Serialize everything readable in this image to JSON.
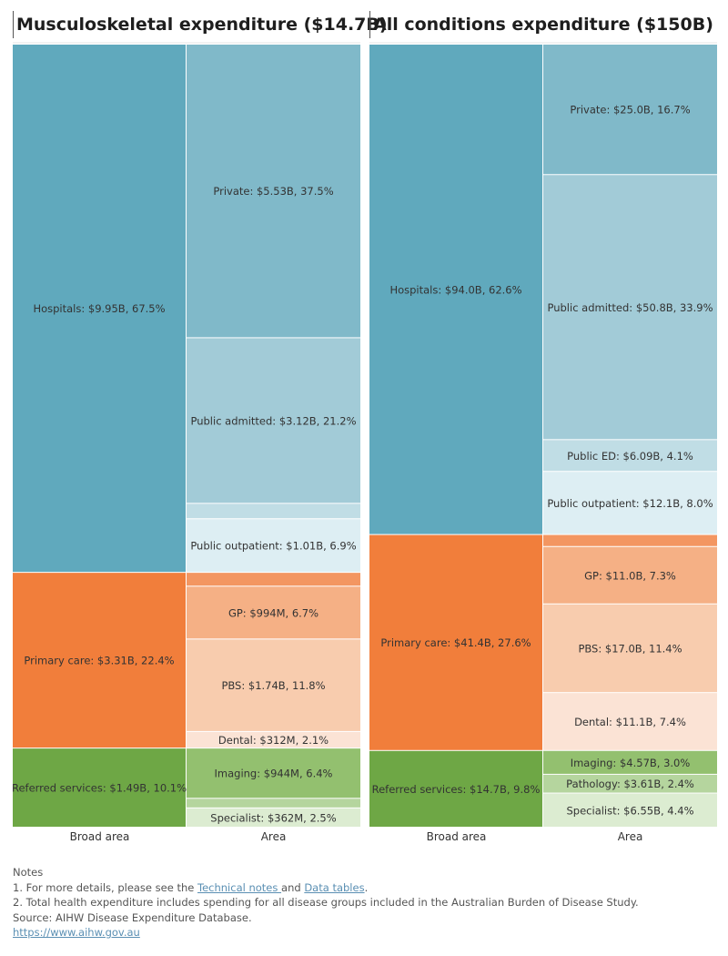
{
  "chart_data": [
    {
      "type": "treemap",
      "title": "Musculoskeletal expenditure ($14.7B)",
      "column_labels": [
        "Broad area",
        "Area"
      ],
      "broad_areas": [
        {
          "label": "Hospitals: $9.95B, 67.5%",
          "value": 9.95,
          "percent": 67.5,
          "color": "#60a9bd",
          "areas": [
            {
              "label": "Private: $5.53B, 37.5%",
              "value": 5.53,
              "percent": 37.5,
              "color": "#80b9c9"
            },
            {
              "label": "Public admitted: $3.12B, 21.2%",
              "value": 3.12,
              "percent": 21.2,
              "color": "#a2cbd7"
            },
            {
              "label": "",
              "value": 0.29,
              "percent": 2.0,
              "color": "#c0dde5"
            },
            {
              "label": "Public outpatient: $1.01B, 6.9%",
              "value": 1.01,
              "percent": 6.9,
              "color": "#ddeef3"
            }
          ]
        },
        {
          "label": "Primary care: $3.31B, 22.4%",
          "value": 3.31,
          "percent": 22.4,
          "color": "#f17e3b",
          "areas": [
            {
              "label": "",
              "value": 0.26,
              "percent": 1.8,
              "color": "#f39661"
            },
            {
              "label": "GP: $994M, 6.7%",
              "value": 0.994,
              "percent": 6.7,
              "color": "#f5b085"
            },
            {
              "label": "PBS: $1.74B, 11.8%",
              "value": 1.74,
              "percent": 11.8,
              "color": "#f8ccae"
            },
            {
              "label": "Dental: $312M, 2.1%",
              "value": 0.312,
              "percent": 2.1,
              "color": "#fbe3d5"
            }
          ]
        },
        {
          "label": "Referred services: $1.49B, 10.1%",
          "value": 1.49,
          "percent": 10.1,
          "color": "#6ea745",
          "areas": [
            {
              "label": "Imaging: $944M, 6.4%",
              "value": 0.944,
              "percent": 6.4,
              "color": "#93c06f"
            },
            {
              "label": "",
              "value": 0.18,
              "percent": 1.2,
              "color": "#b5d59e"
            },
            {
              "label": "Specialist: $362M, 2.5%",
              "value": 0.362,
              "percent": 2.5,
              "color": "#dcecd1"
            }
          ]
        }
      ]
    },
    {
      "type": "treemap",
      "title": "All conditions expenditure ($150B)",
      "column_labels": [
        "Broad area",
        "Area"
      ],
      "broad_areas": [
        {
          "label": "Hospitals: $94.0B, 62.6%",
          "value": 94.0,
          "percent": 62.6,
          "color": "#60a9bd",
          "areas": [
            {
              "label": "Private: $25.0B, 16.7%",
              "value": 25.0,
              "percent": 16.7,
              "color": "#80b9c9"
            },
            {
              "label": "Public admitted: $50.8B, 33.9%",
              "value": 50.8,
              "percent": 33.9,
              "color": "#a2cbd7"
            },
            {
              "label": "Public ED: $6.09B, 4.1%",
              "value": 6.09,
              "percent": 4.1,
              "color": "#c0dde5"
            },
            {
              "label": "Public outpatient: $12.1B, 8.0%",
              "value": 12.1,
              "percent": 8.0,
              "color": "#ddeef3"
            }
          ]
        },
        {
          "label": "Primary care: $41.4B, 27.6%",
          "value": 41.4,
          "percent": 27.6,
          "color": "#f17e3b",
          "areas": [
            {
              "label": "",
              "value": 2.3,
              "percent": 1.5,
              "color": "#f39661"
            },
            {
              "label": "GP: $11.0B, 7.3%",
              "value": 11.0,
              "percent": 7.3,
              "color": "#f5b085"
            },
            {
              "label": "PBS: $17.0B, 11.4%",
              "value": 17.0,
              "percent": 11.4,
              "color": "#f8ccae"
            },
            {
              "label": "Dental: $11.1B, 7.4%",
              "value": 11.1,
              "percent": 7.4,
              "color": "#fbe3d5"
            }
          ]
        },
        {
          "label": "Referred services: $14.7B, 9.8%",
          "value": 14.7,
          "percent": 9.8,
          "color": "#6ea745",
          "areas": [
            {
              "label": "Imaging: $4.57B, 3.0%",
              "value": 4.57,
              "percent": 3.0,
              "color": "#93c06f"
            },
            {
              "label": "Pathology: $3.61B, 2.4%",
              "value": 3.61,
              "percent": 2.4,
              "color": "#b5d59e"
            },
            {
              "label": "Specialist: $6.55B, 4.4%",
              "value": 6.55,
              "percent": 4.4,
              "color": "#dcecd1"
            }
          ]
        }
      ]
    }
  ],
  "notes": {
    "heading": "Notes",
    "note1_prefix": "1. For more details, please see the ",
    "note1_link1": "Technical notes ",
    "note1_and": "and ",
    "note1_link2": "Data tables",
    "note1_suffix": ".",
    "note2": "2. Total health expenditure includes spending for all disease groups included in the Australian Burden of Disease Study.",
    "source": "Source: AIHW Disease Expenditure Database.",
    "url": "https://www.aihw.gov.au"
  }
}
